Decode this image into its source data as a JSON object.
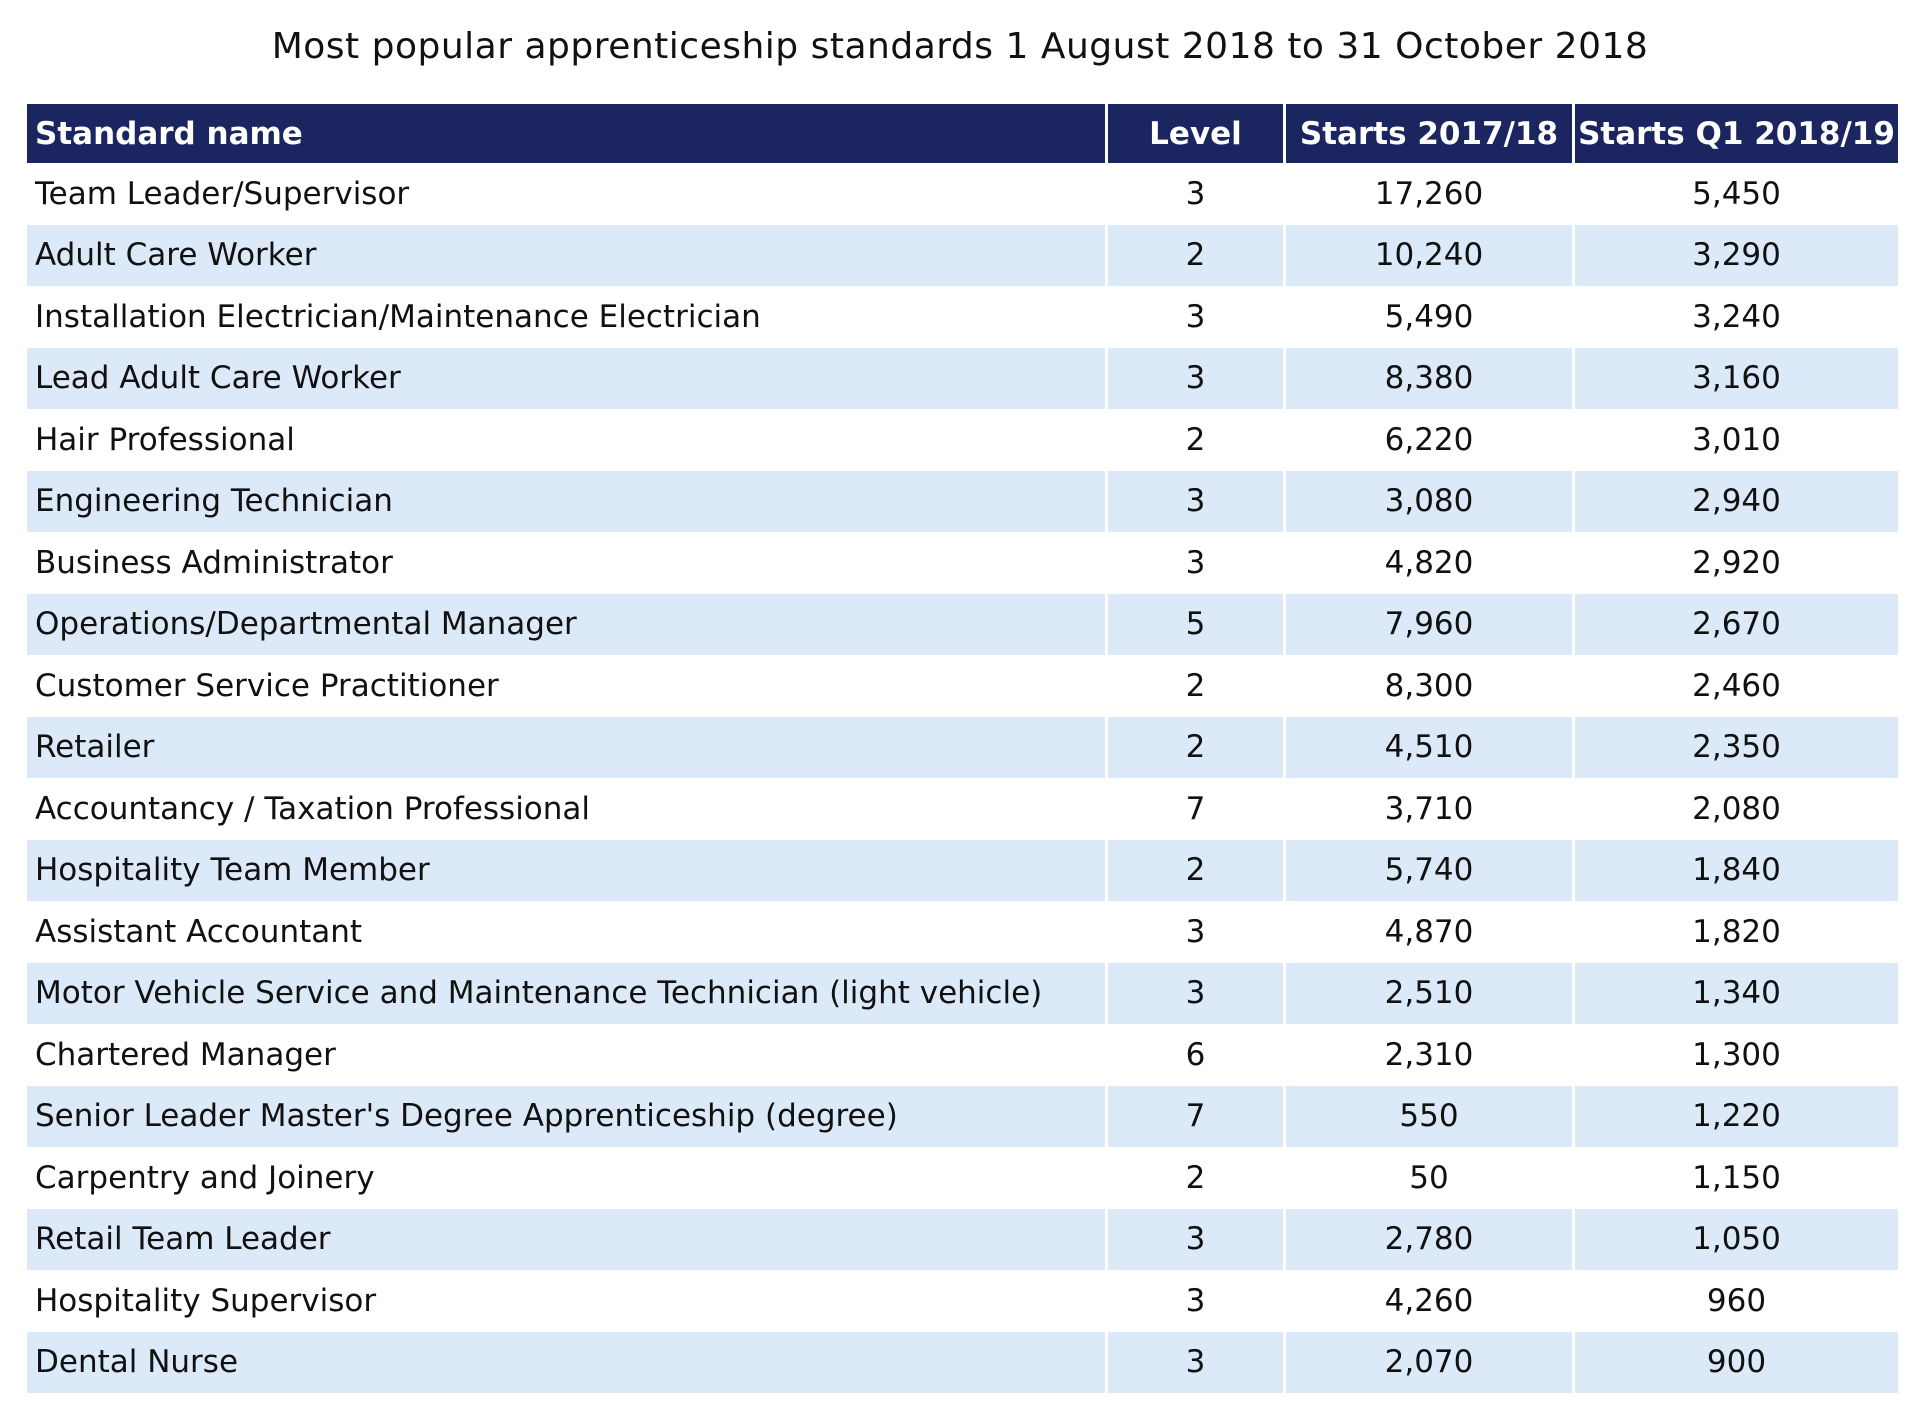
{
  "title": "Most popular apprenticeship standards 1 August 2018 to 31 October 2018",
  "table": {
    "headers": [
      "Standard name",
      "Level",
      "Starts 2017/18",
      "Starts Q1 2018/19"
    ],
    "rows": [
      [
        "Team Leader/Supervisor",
        "3",
        "17,260",
        "5,450"
      ],
      [
        "Adult Care Worker",
        "2",
        "10,240",
        "3,290"
      ],
      [
        "Installation Electrician/Maintenance Electrician",
        "3",
        "5,490",
        "3,240"
      ],
      [
        "Lead Adult Care Worker",
        "3",
        "8,380",
        "3,160"
      ],
      [
        "Hair Professional",
        "2",
        "6,220",
        "3,010"
      ],
      [
        "Engineering Technician",
        "3",
        "3,080",
        "2,940"
      ],
      [
        "Business Administrator",
        "3",
        "4,820",
        "2,920"
      ],
      [
        "Operations/Departmental Manager",
        "5",
        "7,960",
        "2,670"
      ],
      [
        "Customer Service Practitioner",
        "2",
        "8,300",
        "2,460"
      ],
      [
        "Retailer",
        "2",
        "4,510",
        "2,350"
      ],
      [
        "Accountancy / Taxation Professional",
        "7",
        "3,710",
        "2,080"
      ],
      [
        "Hospitality Team Member",
        "2",
        "5,740",
        "1,840"
      ],
      [
        "Assistant Accountant",
        "3",
        "4,870",
        "1,820"
      ],
      [
        "Motor Vehicle Service and Maintenance Technician (light vehicle)",
        "3",
        "2,510",
        "1,340"
      ],
      [
        "Chartered Manager",
        "6",
        "2,310",
        "1,300"
      ],
      [
        "Senior Leader Master's Degree Apprenticeship (degree)",
        "7",
        "550",
        "1,220"
      ],
      [
        "Carpentry and Joinery",
        "2",
        "50",
        "1,150"
      ],
      [
        "Retail Team Leader",
        "3",
        "2,780",
        "1,050"
      ],
      [
        "Hospitality Supervisor",
        "3",
        "4,260",
        "960"
      ],
      [
        "Dental Nurse",
        "3",
        "2,070",
        "900"
      ]
    ]
  }
}
